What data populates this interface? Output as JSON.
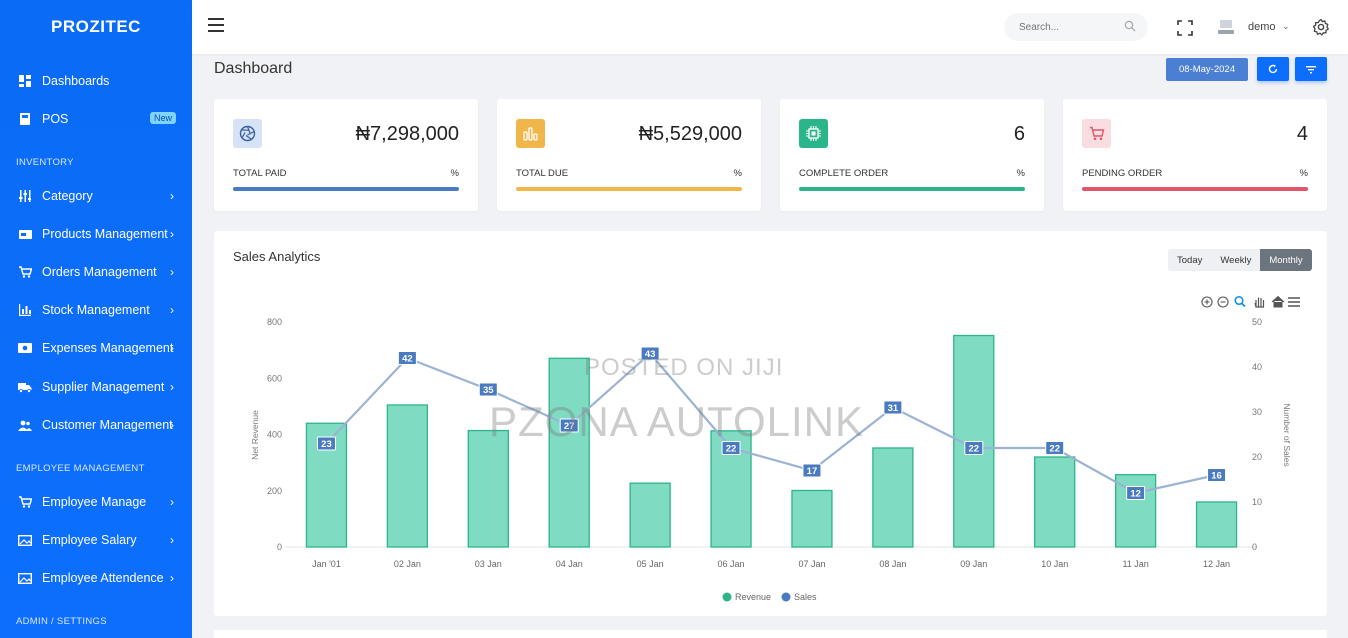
{
  "brand": "PROZITEC",
  "sidebar": {
    "items": [
      {
        "label": "Dashboards",
        "icon": "dashboard-icon"
      },
      {
        "label": "POS",
        "icon": "pos-icon",
        "badge": "New"
      },
      {
        "label": "Category",
        "icon": "sliders-icon"
      },
      {
        "label": "Products Management",
        "icon": "products-icon"
      },
      {
        "label": "Orders Management",
        "icon": "cart-icon"
      },
      {
        "label": "Stock Management",
        "icon": "bar-chart-icon"
      },
      {
        "label": "Expenses Management",
        "icon": "money-icon"
      },
      {
        "label": "Supplier Management",
        "icon": "truck-icon"
      },
      {
        "label": "Customer Management",
        "icon": "users-icon"
      },
      {
        "label": "Employee Manage",
        "icon": "cart-icon"
      },
      {
        "label": "Employee Salary",
        "icon": "image-icon"
      },
      {
        "label": "Employee Attendence",
        "icon": "image-icon"
      }
    ],
    "sections": [
      "INVENTORY",
      "EMPLOYEE MANAGEMENT",
      "ADMIN / SETTINGS"
    ]
  },
  "topbar": {
    "search_placeholder": "Search...",
    "user_name": "demo"
  },
  "page_title": "Dashboard",
  "date_button": "08-May-2024",
  "cards": [
    {
      "value": "₦7,298,000",
      "label": "TOTAL PAID",
      "pct": "%",
      "color": "#4a7ac0",
      "icon_bg": "#d6e2f5",
      "icon": "aperture-icon"
    },
    {
      "value": "₦5,529,000",
      "label": "TOTAL DUE",
      "pct": "%",
      "color": "#f0b64a",
      "icon_bg": "#f0b64a",
      "icon": "bar-chart-icon"
    },
    {
      "value": "6",
      "label": "COMPLETE ORDER",
      "pct": "%",
      "color": "#2bb58a",
      "icon_bg": "#2bb58a",
      "icon": "cpu-icon"
    },
    {
      "value": "4",
      "label": "PENDING ORDER",
      "pct": "%",
      "color": "#e0566a",
      "icon_bg": "#fadde1",
      "icon": "cart-icon"
    }
  ],
  "chart_card": {
    "title": "Sales Analytics",
    "tabs": [
      "Today",
      "Weekly",
      "Monthly"
    ],
    "active_tab": "Monthly"
  },
  "watermark": {
    "line1": "POSTED ON JIJI",
    "line2": "PZONA AUTOLINK"
  },
  "chart_data": {
    "type": "bar",
    "categories": [
      "Jan '01",
      "02 Jan",
      "03 Jan",
      "04 Jan",
      "05 Jan",
      "06 Jan",
      "07 Jan",
      "08 Jan",
      "09 Jan",
      "10 Jan",
      "11 Jan",
      "12 Jan"
    ],
    "series": [
      {
        "name": "Revenue",
        "type": "bar",
        "axis": "left",
        "color": "#2bc39a",
        "values": [
          440,
          505,
          414,
          671,
          227,
          413,
          201,
          352,
          752,
          320,
          257,
          160
        ]
      },
      {
        "name": "Sales",
        "type": "line",
        "axis": "right",
        "color": "#4a7ac0",
        "values": [
          23,
          42,
          35,
          27,
          43,
          22,
          17,
          31,
          22,
          22,
          12,
          16
        ]
      }
    ],
    "ylabel": "Net Revenue",
    "y2label": "Number of Sales",
    "ylim": [
      0,
      800
    ],
    "yticks": [
      0,
      200,
      400,
      600,
      800
    ],
    "y2lim": [
      0,
      50
    ],
    "y2ticks": [
      0,
      10,
      20,
      30,
      40,
      50
    ],
    "legend": "bottom-center",
    "grid": false
  }
}
